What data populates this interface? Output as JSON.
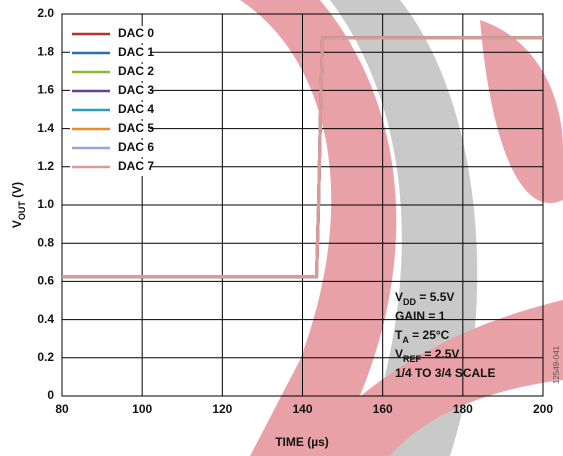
{
  "chart_data": {
    "type": "line",
    "x_label": "TIME (µs)",
    "y_label": [
      "V",
      "OUT",
      " (V)"
    ],
    "figure_id": "12549-041",
    "annotations": [
      [
        "V",
        "DD",
        " = 5.5V"
      ],
      [
        "GAIN = 1"
      ],
      [
        "T",
        "A",
        " = 25°C"
      ],
      [
        "V",
        "REF",
        " = 2.5V"
      ],
      [
        "1/4 TO 3/4 SCALE"
      ]
    ],
    "x": [
      80,
      143.5,
      144,
      144.5,
      145,
      200
    ],
    "series": [
      {
        "name": "DAC 0",
        "color": "#b3362c",
        "values": [
          0.625,
          0.625,
          1.0,
          1.5,
          1.875,
          1.875
        ]
      },
      {
        "name": "DAC 1",
        "color": "#2d6db3",
        "values": [
          0.625,
          0.625,
          1.0,
          1.5,
          1.875,
          1.875
        ]
      },
      {
        "name": "DAC 2",
        "color": "#8cb93b",
        "values": [
          0.625,
          0.625,
          1.0,
          1.5,
          1.875,
          1.875
        ]
      },
      {
        "name": "DAC 3",
        "color": "#6b3f98",
        "values": [
          0.625,
          0.625,
          1.0,
          1.5,
          1.875,
          1.875
        ]
      },
      {
        "name": "DAC 4",
        "color": "#2b9fb3",
        "values": [
          0.625,
          0.625,
          1.0,
          1.5,
          1.875,
          1.875
        ]
      },
      {
        "name": "DAC 5",
        "color": "#f0892a",
        "values": [
          0.625,
          0.625,
          1.0,
          1.5,
          1.875,
          1.875
        ]
      },
      {
        "name": "DAC 6",
        "color": "#93aad8",
        "values": [
          0.625,
          0.625,
          1.0,
          1.5,
          1.875,
          1.875
        ]
      },
      {
        "name": "DAC 7",
        "color": "#d99a98",
        "values": [
          0.625,
          0.625,
          1.0,
          1.5,
          1.875,
          1.875
        ]
      }
    ],
    "xlim": [
      80,
      200
    ],
    "ylim": [
      0,
      2
    ],
    "xticks": [
      80,
      100,
      120,
      140,
      160,
      180,
      200
    ],
    "yticks": [
      0,
      0.2,
      0.4,
      0.6,
      0.8,
      {
        "value": 1,
        "label": "1.0"
      },
      1.2,
      1.4,
      1.6,
      1.8,
      {
        "value": 2,
        "label": "2.0"
      }
    ],
    "grid": true
  }
}
